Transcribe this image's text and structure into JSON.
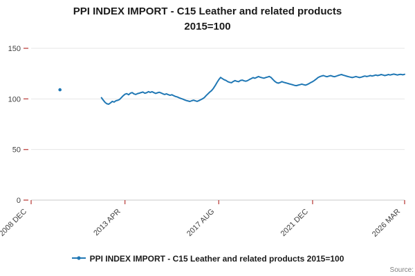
{
  "title": {
    "line1": "PPI INDEX IMPORT - C15 Leather and related products",
    "line2": "2015=100"
  },
  "legend": {
    "label": "PPI INDEX IMPORT - C15 Leather and related products 2015=100"
  },
  "source_label": "Source:",
  "colors": {
    "series": "#1f77b4",
    "tick": "#c0504d",
    "grid": "#e6e6e6",
    "axis_line": "#c8c8c8",
    "axis_text": "#404040",
    "title_text": "#1a1a1a",
    "source_text": "#808080"
  },
  "chart_data": {
    "type": "line",
    "title": "PPI INDEX IMPORT - C15 Leather and related products 2015=100",
    "xlabel": "",
    "ylabel": "",
    "ylim": [
      0,
      160
    ],
    "grid": "horizontal",
    "legend_position": "bottom",
    "y_ticks": [
      0,
      50,
      100,
      150
    ],
    "x_tick_labels": [
      "2008 DEC",
      "2013 APR",
      "2017 AUG",
      "2021 DEC",
      "2026 MAR"
    ],
    "x_ticks": [
      {
        "label": "2008 DEC",
        "month": 0
      },
      {
        "label": "2013 APR",
        "month": 52
      },
      {
        "label": "2017 AUG",
        "month": 104
      },
      {
        "label": "2021 DEC",
        "month": 156
      },
      {
        "label": "2026 MAR",
        "month": 207
      }
    ],
    "total_months": 207,
    "isolated_point": {
      "month": 16,
      "value": 109
    },
    "series": [
      {
        "name": "PPI INDEX IMPORT - C15 Leather and related products 2015=100",
        "start_month": 39,
        "values": [
          101.2,
          98.8,
          96.5,
          95.2,
          94.8,
          96.1,
          97.6,
          96.9,
          98.2,
          98.6,
          99.4,
          101.2,
          103.1,
          104.6,
          105.2,
          104.1,
          105.6,
          106.2,
          104.9,
          104.4,
          105.3,
          105.7,
          106.3,
          106.8,
          105.6,
          106.1,
          107.2,
          106.4,
          107.1,
          106.2,
          105.4,
          106.0,
          106.6,
          105.9,
          105.1,
          104.4,
          105.0,
          104.2,
          103.6,
          104.1,
          103.2,
          102.4,
          101.9,
          101.1,
          100.4,
          99.8,
          99.1,
          98.4,
          97.9,
          97.5,
          98.2,
          98.7,
          98.1,
          97.6,
          98.3,
          99.2,
          100.1,
          101.3,
          103.2,
          105.1,
          106.8,
          108.2,
          110.4,
          113.1,
          116.2,
          119.0,
          121.2,
          120.1,
          118.9,
          118.2,
          117.1,
          116.4,
          116.0,
          117.2,
          118.1,
          117.4,
          117.0,
          118.2,
          118.6,
          117.9,
          117.5,
          118.1,
          119.2,
          120.1,
          121.0,
          120.4,
          121.2,
          122.1,
          121.4,
          120.9,
          120.5,
          121.1,
          121.6,
          122.2,
          121.1,
          119.2,
          117.4,
          116.1,
          115.6,
          116.2,
          117.1,
          116.4,
          115.9,
          115.4,
          114.9,
          114.4,
          113.9,
          113.4,
          113.1,
          113.6,
          114.1,
          114.6,
          114.1,
          113.6,
          114.2,
          115.1,
          116.2,
          117.1,
          118.2,
          119.6,
          121.1,
          122.0,
          122.6,
          123.1,
          122.4,
          121.9,
          122.5,
          123.0,
          122.4,
          121.9,
          122.4,
          123.1,
          123.6,
          124.1,
          123.5,
          122.9,
          122.4,
          121.9,
          121.5,
          121.1,
          121.6,
          122.1,
          121.6,
          121.1,
          121.5,
          122.1,
          122.6,
          122.1,
          122.5,
          123.1,
          122.6,
          123.1,
          123.6,
          123.1,
          123.5,
          124.1,
          123.6,
          123.1,
          123.5,
          124.1,
          123.6,
          124.1,
          124.5,
          124.1,
          123.6,
          124.1,
          124.2,
          123.8,
          124.3
        ]
      }
    ]
  }
}
